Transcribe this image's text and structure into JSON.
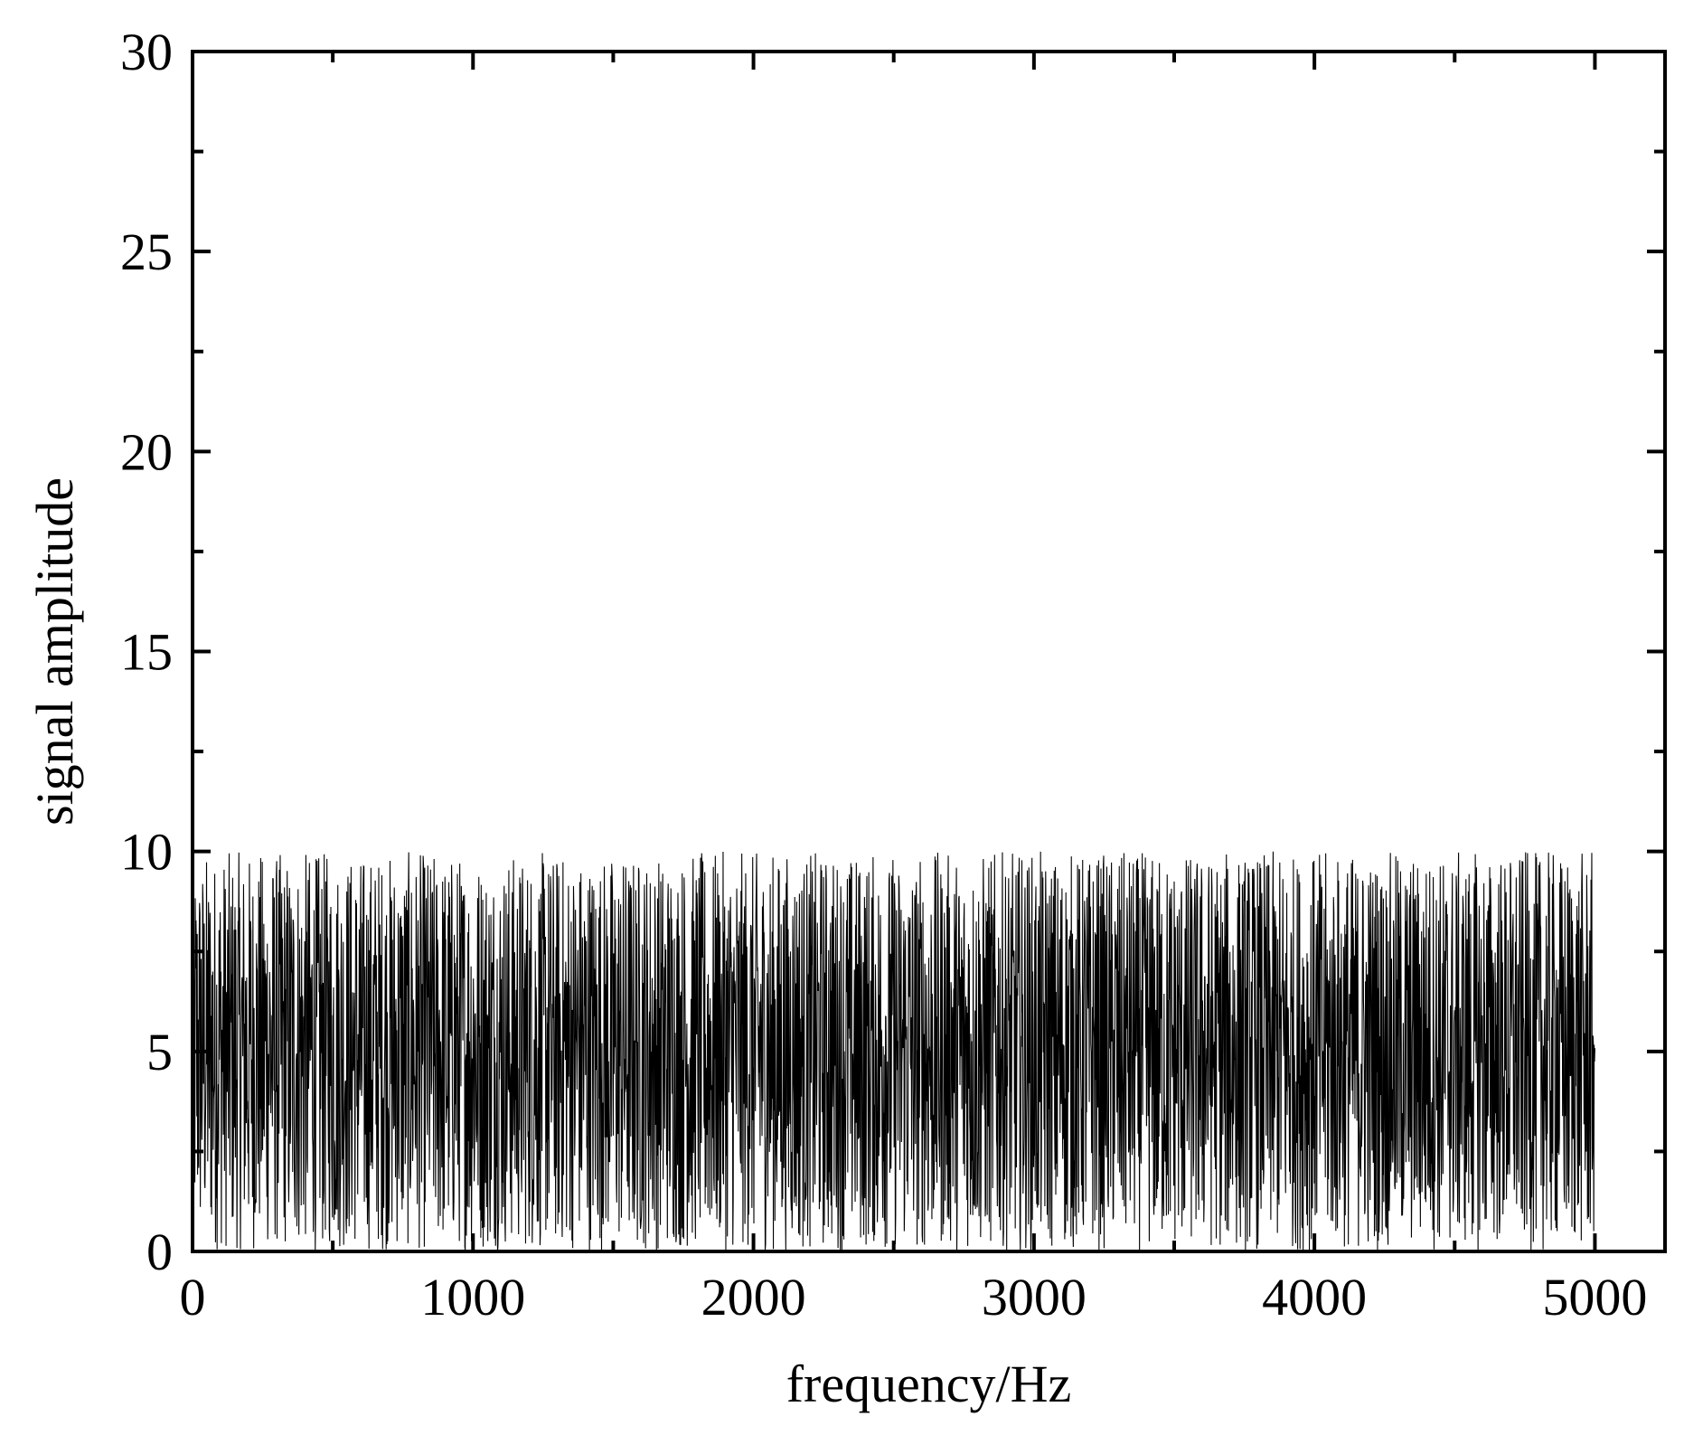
{
  "chart_data": {
    "type": "line",
    "title": "",
    "xlabel": "frequency/Hz",
    "ylabel": "signal amplitude",
    "xlim": [
      0,
      5250
    ],
    "ylim": [
      0,
      30
    ],
    "x_ticks": [
      0,
      1000,
      2000,
      3000,
      4000,
      5000
    ],
    "y_ticks": [
      0,
      5,
      10,
      15,
      20,
      25,
      30
    ],
    "x_tick_labels": [
      "0",
      "1000",
      "2000",
      "3000",
      "4000",
      "5000"
    ],
    "y_tick_labels": [
      "0",
      "5",
      "10",
      "15",
      "20",
      "25",
      "30"
    ],
    "grid": false,
    "legend": "none",
    "line_color": "#000000",
    "series": [
      {
        "x_start": 0,
        "x_end": 5000,
        "min": 0,
        "max": 10,
        "mean": 5,
        "distribution": "uniform random noise"
      }
    ]
  }
}
